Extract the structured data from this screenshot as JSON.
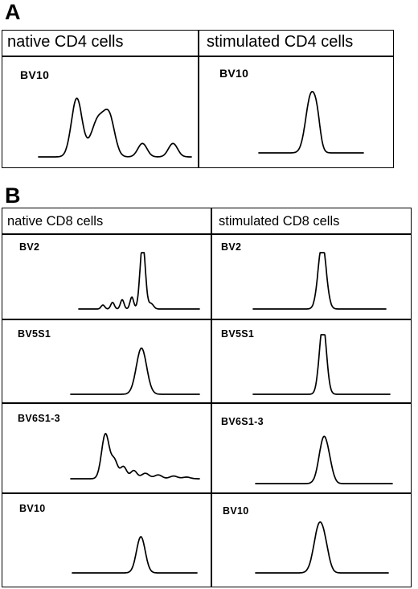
{
  "panels": [
    {
      "letter": "A",
      "columns": [
        "native CD4 cells",
        "stimulated CD4 cells"
      ],
      "rows": [
        {
          "label_left": "BV10",
          "label_right": "BV10"
        }
      ]
    },
    {
      "letter": "B",
      "columns": [
        "native CD8 cells",
        "stimulated CD8 cells"
      ],
      "rows": [
        {
          "label_left": "BV2",
          "label_right": "BV2"
        },
        {
          "label_left": "BV5S1",
          "label_right": "BV5S1"
        },
        {
          "label_left": "BV6S1-3",
          "label_right": "BV6S1-3"
        },
        {
          "label_left": "BV10",
          "label_right": "BV10"
        }
      ]
    }
  ],
  "traces": {
    "A_native_BV10": {
      "peaks": [
        [
          0.25,
          0.78,
          0.035
        ],
        [
          0.39,
          0.5,
          0.045
        ],
        [
          0.465,
          0.47,
          0.035
        ],
        [
          0.68,
          0.18,
          0.03
        ],
        [
          0.88,
          0.18,
          0.03
        ]
      ],
      "clip": null
    },
    "A_stim_BV10": {
      "peaks": [
        [
          0.5,
          0.82,
          0.05
        ],
        [
          0.56,
          0.25,
          0.03
        ]
      ],
      "clip": null
    },
    "B_native_BV2": {
      "peaks": [
        [
          0.53,
          1.0,
          0.022
        ],
        [
          0.44,
          0.18,
          0.015
        ],
        [
          0.36,
          0.14,
          0.015
        ],
        [
          0.28,
          0.1,
          0.015
        ],
        [
          0.2,
          0.06,
          0.015
        ],
        [
          0.6,
          0.08,
          0.02
        ]
      ],
      "clip": 0.85
    },
    "B_stim_BV2": {
      "peaks": [
        [
          0.52,
          1.0,
          0.03
        ]
      ],
      "clip": 0.85
    },
    "B_native_BV5S1": {
      "peaks": [
        [
          0.55,
          0.82,
          0.04
        ]
      ],
      "clip": null
    },
    "B_stim_BV5S1": {
      "peaks": [
        [
          0.51,
          1.0,
          0.026
        ]
      ],
      "clip": 0.85
    },
    "B_native_BV6S1-3": {
      "peaks": [
        [
          0.27,
          0.82,
          0.03
        ],
        [
          0.34,
          0.32,
          0.025
        ],
        [
          0.41,
          0.22,
          0.025
        ],
        [
          0.49,
          0.15,
          0.025
        ],
        [
          0.58,
          0.1,
          0.03
        ],
        [
          0.68,
          0.07,
          0.03
        ],
        [
          0.8,
          0.05,
          0.03
        ],
        [
          0.9,
          0.03,
          0.03
        ]
      ],
      "clip": null
    },
    "B_stim_BV6S1-3": {
      "peaks": [
        [
          0.5,
          0.78,
          0.035
        ],
        [
          0.55,
          0.1,
          0.025
        ]
      ],
      "clip": null
    },
    "B_native_BV10": {
      "peaks": [
        [
          0.55,
          0.75,
          0.035
        ]
      ],
      "clip": null
    },
    "B_stim_BV10": {
      "peaks": [
        [
          0.48,
          0.82,
          0.04
        ],
        [
          0.53,
          0.2,
          0.03
        ]
      ],
      "clip": null
    }
  }
}
